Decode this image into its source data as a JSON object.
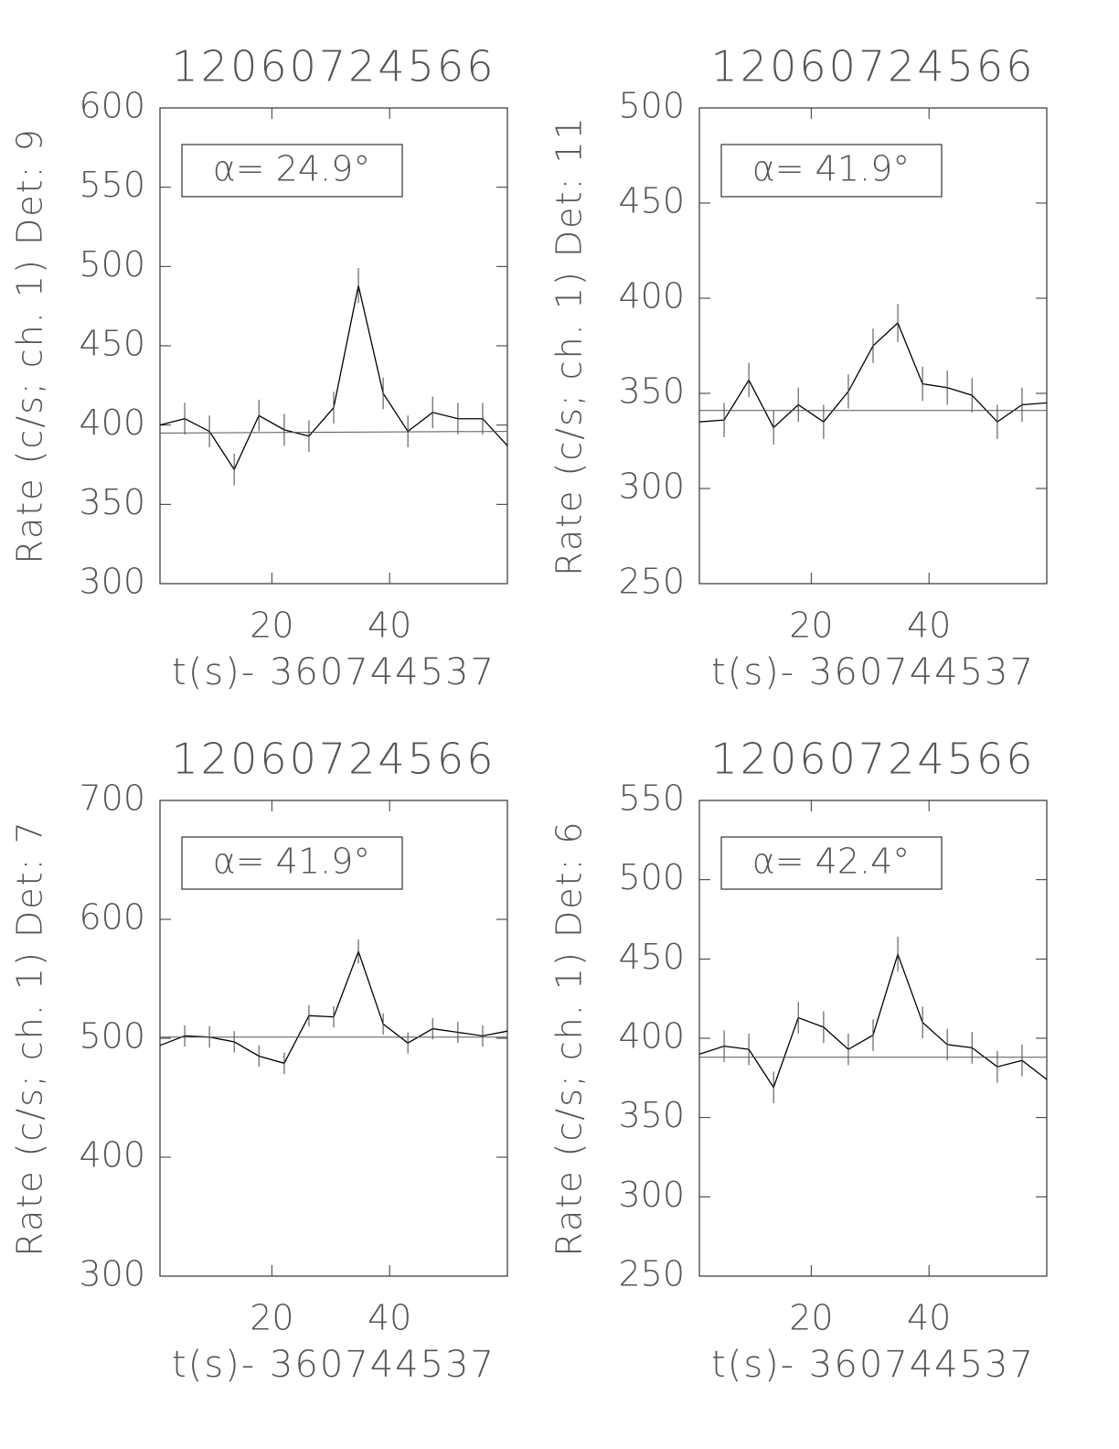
{
  "chart_data": [
    {
      "type": "line",
      "title": "12060724566",
      "x_label": "t(s)- 360744537",
      "y_label": "Rate (c/s; ch. 1) Det: 9",
      "annotation": "α= 24.9°",
      "x": [
        1,
        5.2,
        9.4,
        13.6,
        17.8,
        22.1,
        26.3,
        30.5,
        34.7,
        38.9,
        43.1,
        47.3,
        51.6,
        55.8,
        60
      ],
      "xlim": [
        1,
        60
      ],
      "xticks": [
        20,
        40
      ],
      "ylim": [
        300,
        600
      ],
      "yticks": [
        300,
        350,
        400,
        450,
        500,
        550,
        600
      ],
      "series": [
        {
          "color": "#000000",
          "values": [
            400,
            404,
            396,
            372,
            406,
            397,
            393,
            411,
            488,
            420,
            396,
            408,
            404,
            404,
            387
          ],
          "errors": [
            null,
            10,
            10,
            10,
            10,
            10,
            10,
            10,
            11,
            10,
            10,
            10,
            10,
            10,
            null
          ]
        },
        {
          "color": "#555555",
          "x": [
            1,
            60
          ],
          "values": [
            395,
            396
          ]
        }
      ]
    },
    {
      "type": "line",
      "title": "12060724566",
      "x_label": "t(s)- 360744537",
      "y_label": "Rate (c/s; ch. 1) Det: 11",
      "annotation": "α= 41.9°",
      "x": [
        1,
        5.2,
        9.4,
        13.6,
        17.8,
        22.1,
        26.3,
        30.5,
        34.7,
        38.9,
        43.1,
        47.3,
        51.6,
        55.8,
        60
      ],
      "xlim": [
        1,
        60
      ],
      "xticks": [
        20,
        40
      ],
      "ylim": [
        250,
        500
      ],
      "yticks": [
        250,
        300,
        350,
        400,
        450,
        500
      ],
      "series": [
        {
          "color": "#000000",
          "values": [
            335,
            336,
            357,
            332,
            344,
            335,
            351,
            375,
            387,
            355,
            353,
            349,
            335,
            344,
            345
          ],
          "errors": [
            null,
            9,
            9,
            9,
            9,
            9,
            9,
            9,
            10,
            9,
            9,
            9,
            9,
            9,
            null
          ]
        },
        {
          "color": "#555555",
          "x": [
            1,
            60
          ],
          "values": [
            341,
            341
          ]
        }
      ]
    },
    {
      "type": "line",
      "title": "12060724566",
      "x_label": "t(s)- 360744537",
      "y_label": "Rate (c/s; ch. 1) Det: 7",
      "annotation": "α= 41.9°",
      "x": [
        1,
        5.2,
        9.4,
        13.6,
        17.8,
        22.1,
        26.3,
        30.5,
        34.7,
        38.9,
        43.1,
        47.3,
        51.6,
        55.8,
        60
      ],
      "xlim": [
        1,
        60
      ],
      "xticks": [
        20,
        40
      ],
      "ylim": [
        300,
        700
      ],
      "yticks": [
        300,
        400,
        500,
        600,
        700
      ],
      "series": [
        {
          "color": "#000000",
          "values": [
            494,
            502,
            501,
            497,
            485,
            479,
            519,
            518,
            573,
            512,
            496,
            508,
            505,
            502,
            506
          ],
          "errors": [
            null,
            9,
            9,
            9,
            9,
            9,
            9,
            9,
            10,
            9,
            9,
            9,
            9,
            9,
            null
          ]
        },
        {
          "color": "#555555",
          "x": [
            1,
            60
          ],
          "values": [
            501,
            501
          ]
        }
      ]
    },
    {
      "type": "line",
      "title": "12060724566",
      "x_label": "t(s)- 360744537",
      "y_label": "Rate (c/s; ch. 1) Det: 6",
      "annotation": "α= 42.4°",
      "x": [
        1,
        5.2,
        9.4,
        13.6,
        17.8,
        22.1,
        26.3,
        30.5,
        34.7,
        38.9,
        43.1,
        47.3,
        51.6,
        55.8,
        60
      ],
      "xlim": [
        1,
        60
      ],
      "xticks": [
        20,
        40
      ],
      "ylim": [
        250,
        550
      ],
      "yticks": [
        250,
        300,
        350,
        400,
        450,
        500,
        550
      ],
      "series": [
        {
          "color": "#000000",
          "values": [
            390,
            395,
            393,
            369,
            413,
            407,
            393,
            402,
            453,
            410,
            396,
            394,
            382,
            386,
            374
          ],
          "errors": [
            null,
            10,
            10,
            10,
            10,
            10,
            10,
            10,
            11,
            10,
            10,
            10,
            10,
            10,
            null
          ]
        },
        {
          "color": "#555555",
          "x": [
            1,
            60
          ],
          "values": [
            388,
            388
          ]
        }
      ]
    }
  ]
}
